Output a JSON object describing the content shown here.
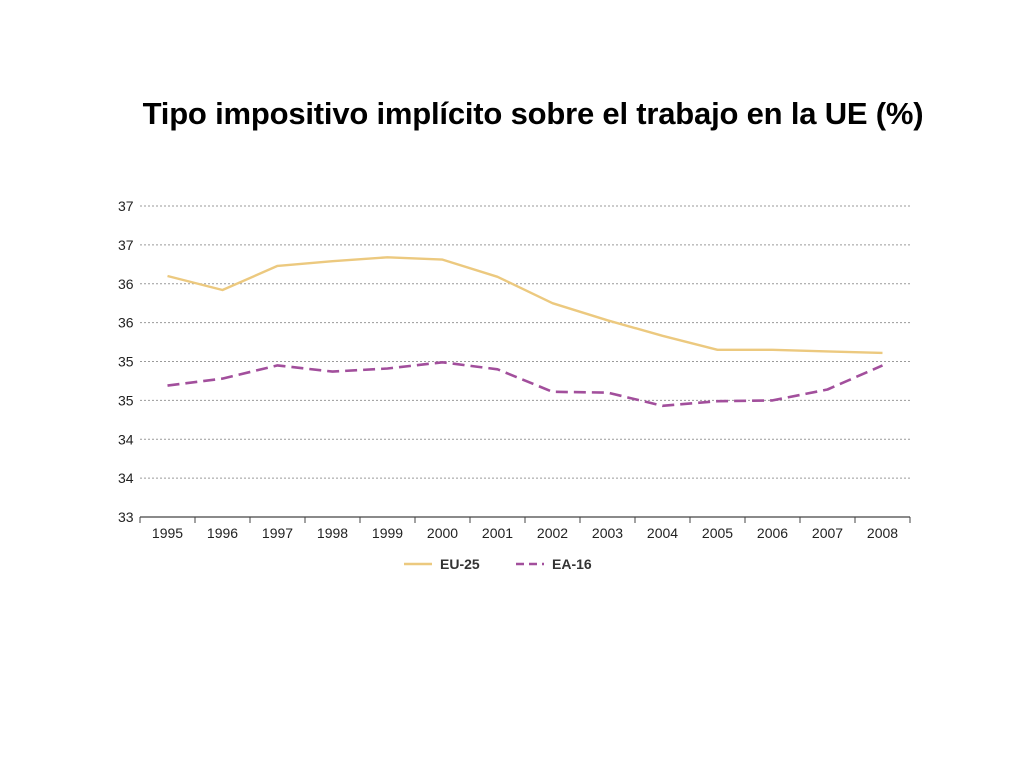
{
  "slide": {
    "title": "Tipo impositivo implícito sobre el trabajo en la UE (%)"
  },
  "chart_data": {
    "type": "line",
    "title": "Tipo impositivo implícito sobre el trabajo en la UE (%)",
    "xlabel": "",
    "ylabel": "",
    "categories": [
      "1995",
      "1996",
      "1997",
      "1998",
      "1999",
      "2000",
      "2001",
      "2002",
      "2003",
      "2004",
      "2005",
      "2006",
      "2007",
      "2008"
    ],
    "ylim": [
      33,
      37
    ],
    "y_tick_values": [
      33,
      33.5,
      34,
      34.5,
      35,
      35.5,
      36,
      36.5,
      37
    ],
    "y_tick_labels": [
      "33",
      "34",
      "34",
      "35",
      "35",
      "36",
      "36",
      "37",
      "37"
    ],
    "grid": true,
    "legend_position": "bottom",
    "series": [
      {
        "name": "EU-25",
        "style": "solid",
        "color": "#ecc97f",
        "values": [
          36.1,
          35.92,
          36.23,
          36.29,
          36.34,
          36.31,
          36.09,
          35.75,
          35.53,
          35.33,
          35.15,
          35.15,
          35.13,
          35.11
        ]
      },
      {
        "name": "EA-16",
        "style": "dashed",
        "color": "#a24f9c",
        "values": [
          34.69,
          34.78,
          34.95,
          34.87,
          34.91,
          34.99,
          34.9,
          34.61,
          34.6,
          34.43,
          34.49,
          34.5,
          34.64,
          34.95
        ]
      }
    ]
  }
}
